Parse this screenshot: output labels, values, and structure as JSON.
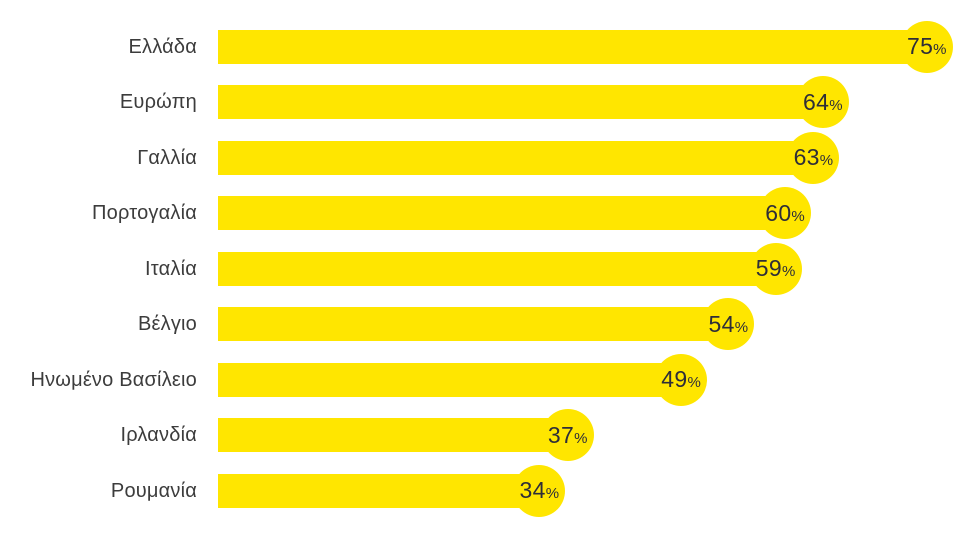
{
  "page": {
    "background_color": "#ffffff"
  },
  "chart_data": {
    "type": "bar",
    "orientation": "horizontal",
    "title": "",
    "xlabel": "",
    "ylabel": "",
    "categories": [
      "Ελλάδα",
      "Ευρώπη",
      "Γαλλία",
      "Πορτογαλία",
      "Ιταλία",
      "Βέλγιο",
      "Ηνωμένο Βασίλειο",
      "Ιρλανδία",
      "Ρουμανία"
    ],
    "values": [
      75,
      64,
      63,
      60,
      59,
      54,
      49,
      37,
      34
    ],
    "value_labels": [
      "75%",
      "64%",
      "63%",
      "60%",
      "59%",
      "54%",
      "49%",
      "37%",
      "34%"
    ],
    "value_suffix": "%",
    "xlim": [
      0,
      100
    ],
    "grid": false,
    "legend": false,
    "bar_color": "#FFE600",
    "cap_color": "#FFE600",
    "value_text_color": "#2e2e38",
    "label_text_color": "#3c3c3c",
    "bar_end_style": "circle-lollipop"
  }
}
